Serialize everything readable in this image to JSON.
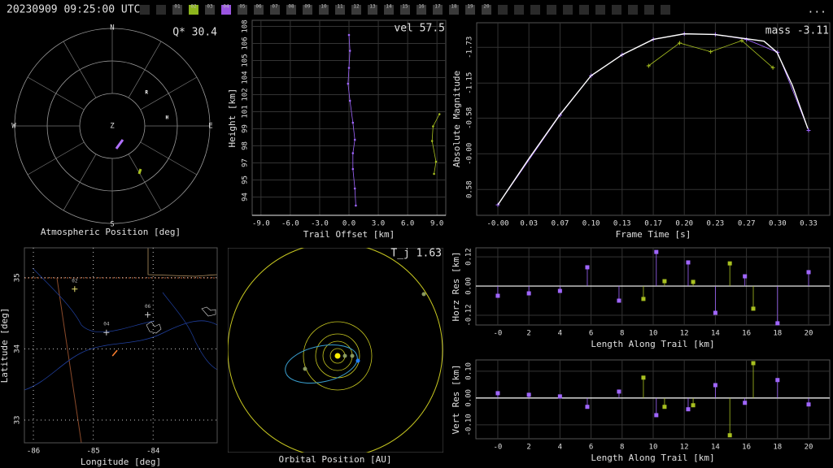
{
  "header": {
    "timestamp": "20230909 09:25:00 UTC",
    "cameras": [
      {
        "label": "01"
      },
      {
        "label": "02",
        "color": "#8db51d"
      },
      {
        "label": "03"
      },
      {
        "label": "04",
        "color": "#9a55e0"
      },
      {
        "label": "05"
      },
      {
        "label": "06"
      },
      {
        "label": "07"
      },
      {
        "label": "08"
      },
      {
        "label": "09"
      },
      {
        "label": "10"
      },
      {
        "label": "11"
      },
      {
        "label": "12"
      },
      {
        "label": "13"
      },
      {
        "label": "14"
      },
      {
        "label": "15"
      },
      {
        "label": "16"
      },
      {
        "label": "17"
      },
      {
        "label": "18"
      },
      {
        "label": "19"
      },
      {
        "label": "20"
      }
    ],
    "menu": "..."
  },
  "chart_data": [
    {
      "type": "polar",
      "xlabel": "Atmospheric Position [deg]",
      "annotation": "Q* 30.4",
      "compass": [
        "N",
        "E",
        "S",
        "W"
      ],
      "zenith_label": "Z",
      "rlim": [
        0,
        90
      ],
      "series": [
        {
          "color": "#b070ff",
          "az": [
            170,
            142.6
          ],
          "zen": [
            21.3,
            16
          ]
        },
        {
          "color": "#a8c020",
          "az": [
            150.8,
            146.6
          ],
          "zen": [
            50.7,
            47.6
          ]
        }
      ],
      "stars": [
        {
          "label": "R",
          "az": 46,
          "zen": 44
        },
        {
          "label": "H",
          "az": 81.5,
          "zen": 51
        }
      ]
    },
    {
      "type": "line",
      "xlabel": "Trail Offset [km]",
      "ylabel": "Height [km]",
      "annotation": "vel 57.5",
      "xlim": [
        -9.9,
        9.9
      ],
      "ylim": [
        92.3,
        108.3
      ],
      "xticks": [
        {
          "value": -9,
          "label": "-9.0"
        },
        {
          "value": -6,
          "label": "-6.0"
        },
        {
          "value": -3,
          "label": "-3.0"
        },
        {
          "value": 0,
          "label": "0.0"
        },
        {
          "value": 3,
          "label": "3.0"
        },
        {
          "value": 6,
          "label": "6.0"
        },
        {
          "value": 9,
          "label": "9.0"
        }
      ],
      "yticks": [
        {
          "value": 93.8,
          "label": "94"
        },
        {
          "value": 95.2,
          "label": "95"
        },
        {
          "value": 96.6,
          "label": "97"
        },
        {
          "value": 98.0,
          "label": "98"
        },
        {
          "value": 99.4,
          "label": "99"
        },
        {
          "value": 100.8,
          "label": "101"
        },
        {
          "value": 102.2,
          "label": "102"
        },
        {
          "value": 103.6,
          "label": "104"
        },
        {
          "value": 105.0,
          "label": "105"
        },
        {
          "value": 106.4,
          "label": "106"
        },
        {
          "value": 107.8,
          "label": "108"
        }
      ],
      "grid": true,
      "series": [
        {
          "color": "#a066ff",
          "marker": "dot",
          "x": [
            0,
            0.1,
            0,
            -0.1,
            0.1,
            0.4,
            0.6,
            0.4,
            0.4,
            0.6,
            0.7
          ],
          "values": [
            107.1,
            105.8,
            104.4,
            103.1,
            101.7,
            99.9,
            98.5,
            97.4,
            96.1,
            94.5,
            93.1
          ]
        },
        {
          "color": "#a8c020",
          "marker": "dot",
          "x": [
            9.25,
            8.6,
            8.5,
            8.9,
            8.7
          ],
          "values": [
            100.6,
            99.6,
            98.4,
            96.7,
            95.7
          ]
        }
      ]
    },
    {
      "type": "line",
      "xlabel": "Frame Time [s]",
      "ylabel": "Absolute Magnitude",
      "annotation": "mass -3.11",
      "xlim": [
        -0.0227,
        0.356
      ],
      "ylim": [
        -2.13,
        1.0
      ],
      "y_inverted": true,
      "xticks": [
        {
          "value": 0,
          "label": "-0.00"
        },
        {
          "value": 0.0333,
          "label": "0.03"
        },
        {
          "value": 0.0667,
          "label": "0.07"
        },
        {
          "value": 0.1,
          "label": "0.10"
        },
        {
          "value": 0.1333,
          "label": "0.13"
        },
        {
          "value": 0.1667,
          "label": "0.17"
        },
        {
          "value": 0.2,
          "label": "0.20"
        },
        {
          "value": 0.2333,
          "label": "0.23"
        },
        {
          "value": 0.2667,
          "label": "0.27"
        },
        {
          "value": 0.3,
          "label": "0.30"
        },
        {
          "value": 0.3333,
          "label": "0.33"
        }
      ],
      "yticks": [
        -1.73,
        -1.15,
        -0.58,
        {
          "value": 0,
          "label": "-0.00"
        },
        0.58
      ],
      "grid": true,
      "series": [
        {
          "color": "#a8c020",
          "marker": "+",
          "x": [
            0.1617,
            0.195,
            0.2283,
            0.2617,
            0.295
          ],
          "values": [
            -1.43,
            -1.8,
            -1.66,
            -1.84,
            -1.4
          ]
        },
        {
          "color": "#a066ff",
          "marker": "+",
          "x": [
            0,
            0.0667,
            0.1,
            0.1333,
            0.1667,
            0.2,
            0.2333,
            0.2667,
            0.3,
            0.3333
          ],
          "values": [
            0.83,
            -0.63,
            -1.27,
            -1.61,
            -1.86,
            -1.95,
            -1.94,
            -1.86,
            -1.65,
            -0.38
          ]
        },
        {
          "color": "#ffffff",
          "marker": "none",
          "x": [
            0,
            0.0332,
            0.0663,
            0.1,
            0.1333,
            0.1667,
            0.2,
            0.2323,
            0.2664,
            0.2855,
            0.2994,
            0.316,
            0.3325
          ],
          "values": [
            0.83,
            0.08,
            -0.63,
            -1.27,
            -1.61,
            -1.86,
            -1.95,
            -1.94,
            -1.87,
            -1.83,
            -1.65,
            -1.11,
            -0.41
          ]
        }
      ]
    },
    {
      "type": "map",
      "xlabel": "Longitude [deg]",
      "ylabel": "Latitude [deg]",
      "xlim": [
        -86.15,
        -82.93
      ],
      "ylim": [
        32.68,
        35.42
      ],
      "xticks": [
        -86,
        -85,
        -84
      ],
      "yticks": [
        33,
        34,
        35
      ],
      "grid": true,
      "stations": [
        {
          "label": "02",
          "lon": -85.31,
          "lat": 34.84,
          "color": "#e8e070"
        },
        {
          "label": "04",
          "lon": -84.78,
          "lat": 34.23,
          "color": "#cccccc"
        },
        {
          "label": "06",
          "lon": -84.09,
          "lat": 34.48,
          "color": "#cccccc"
        }
      ],
      "trail": {
        "color": "#ff8030",
        "lon": [
          -84.68,
          -84.6
        ],
        "lat": [
          33.9,
          33.98
        ]
      }
    },
    {
      "type": "orbit",
      "xlabel": "Orbital Position [AU]",
      "annotation": "T_j 1.63"
    },
    {
      "type": "stem",
      "xlabel": "Length Along Trail [km]",
      "ylabel": "Horz Res [km]",
      "xlim": [
        -1.41,
        21.36
      ],
      "ylim": [
        -0.16,
        0.157
      ],
      "xticks": [
        {
          "value": 0,
          "label": "-0"
        },
        2,
        4,
        6,
        8,
        10,
        12,
        14,
        16,
        18,
        20
      ],
      "yticks": [
        -0.12,
        {
          "value": 0,
          "label": "0.00"
        },
        0.12
      ],
      "grid": true,
      "series": [
        {
          "color": "#a066ff",
          "x": [
            0,
            2,
            4,
            5.76,
            7.8,
            10.2,
            12.25,
            14,
            15.9,
            18,
            20
          ],
          "values": [
            -0.04,
            -0.03,
            -0.02,
            0.077,
            -0.06,
            0.14,
            0.097,
            -0.11,
            0.04,
            -0.153,
            0.057
          ]
        },
        {
          "color": "#a8c020",
          "x": [
            9.37,
            10.73,
            12.57,
            14.93,
            16.44
          ],
          "values": [
            -0.053,
            0.02,
            0.017,
            0.093,
            -0.093
          ]
        }
      ]
    },
    {
      "type": "stem",
      "xlabel": "Length Along Trail [km]",
      "ylabel": "Vert Res [km]",
      "xlim": [
        -1.41,
        21.36
      ],
      "ylim": [
        -0.152,
        0.142
      ],
      "xticks": [
        {
          "value": 0,
          "label": "-0"
        },
        2,
        4,
        6,
        8,
        10,
        12,
        14,
        16,
        18,
        20
      ],
      "yticks": [
        {
          "value": -0.1,
          "label": "-0.10"
        },
        {
          "value": 0,
          "label": "0.00"
        },
        {
          "value": 0.1,
          "label": "0.10"
        }
      ],
      "grid": true,
      "series": [
        {
          "color": "#a066ff",
          "x": [
            0,
            2,
            4,
            5.76,
            7.8,
            10.2,
            12.25,
            14,
            15.9,
            18,
            20
          ],
          "values": [
            0.018,
            0.012,
            0.006,
            -0.033,
            0.024,
            -0.064,
            -0.042,
            0.048,
            -0.018,
            0.067,
            -0.024
          ]
        },
        {
          "color": "#a8c020",
          "x": [
            9.37,
            10.73,
            12.57,
            14.93,
            16.44
          ],
          "values": [
            0.076,
            -0.033,
            -0.027,
            -0.139,
            0.13
          ]
        }
      ]
    }
  ]
}
